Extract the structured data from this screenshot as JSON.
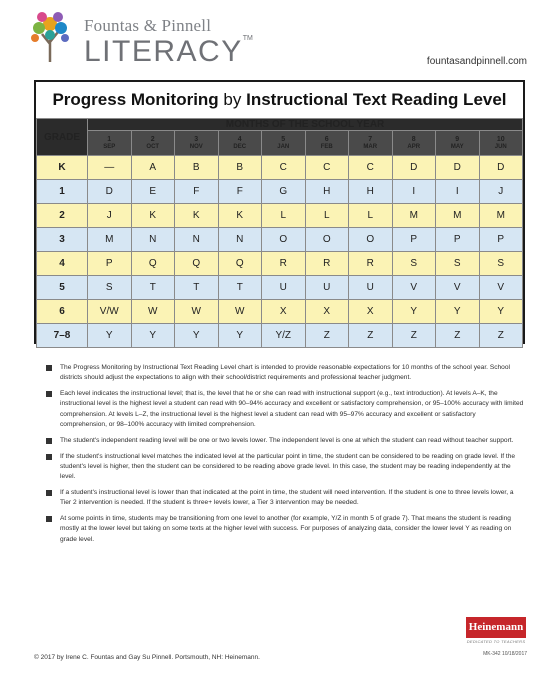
{
  "brand": {
    "name_top": "Fountas & Pinnell",
    "name_main": "LITERACY",
    "tm": "TM",
    "website": "fountasandpinnell.com"
  },
  "chart": {
    "title_bold_1": "Progress Monitoring",
    "title_by": "by",
    "title_bold_2": "Instructional Text Reading Level",
    "grade_header": "GRADE",
    "months_header": "MONTHS OF THE SCHOOL YEAR",
    "months": [
      {
        "num": "1",
        "name": "SEP"
      },
      {
        "num": "2",
        "name": "OCT"
      },
      {
        "num": "3",
        "name": "NOV"
      },
      {
        "num": "4",
        "name": "DEC"
      },
      {
        "num": "5",
        "name": "JAN"
      },
      {
        "num": "6",
        "name": "FEB"
      },
      {
        "num": "7",
        "name": "MAR"
      },
      {
        "num": "8",
        "name": "APR"
      },
      {
        "num": "9",
        "name": "MAY"
      },
      {
        "num": "10",
        "name": "JUN"
      }
    ],
    "rows": [
      {
        "grade": "K",
        "color": "yellow",
        "levels": [
          "—",
          "A",
          "B",
          "B",
          "C",
          "C",
          "C",
          "D",
          "D",
          "D"
        ]
      },
      {
        "grade": "1",
        "color": "blue",
        "levels": [
          "D",
          "E",
          "F",
          "F",
          "G",
          "H",
          "H",
          "I",
          "I",
          "J"
        ]
      },
      {
        "grade": "2",
        "color": "yellow",
        "levels": [
          "J",
          "K",
          "K",
          "K",
          "L",
          "L",
          "L",
          "M",
          "M",
          "M"
        ]
      },
      {
        "grade": "3",
        "color": "blue",
        "levels": [
          "M",
          "N",
          "N",
          "N",
          "O",
          "O",
          "O",
          "P",
          "P",
          "P"
        ]
      },
      {
        "grade": "4",
        "color": "yellow",
        "levels": [
          "P",
          "Q",
          "Q",
          "Q",
          "R",
          "R",
          "R",
          "S",
          "S",
          "S"
        ]
      },
      {
        "grade": "5",
        "color": "blue",
        "levels": [
          "S",
          "T",
          "T",
          "T",
          "U",
          "U",
          "U",
          "V",
          "V",
          "V"
        ]
      },
      {
        "grade": "6",
        "color": "yellow",
        "levels": [
          "V/W",
          "W",
          "W",
          "W",
          "X",
          "X",
          "X",
          "Y",
          "Y",
          "Y"
        ]
      },
      {
        "grade": "7–8",
        "color": "blue",
        "levels": [
          "Y",
          "Y",
          "Y",
          "Y",
          "Y/Z",
          "Z",
          "Z",
          "Z",
          "Z",
          "Z"
        ]
      }
    ]
  },
  "notes": [
    "The Progress Monitoring by Instructional Text Reading Level chart is intended to provide reasonable expectations for 10 months of the school year. School districts should adjust the expectations to align with their school/district requirements and professional teacher judgment.",
    "Each level indicates the instructional level; that is, the level that he or she can read with instructional support (e.g., text introduction). At levels A–K, the instructional level is the highest level a student can read with 90–94% accuracy and excellent or satisfactory comprehension, or 95–100% accuracy with limited comprehension. At levels L–Z, the instructional level is the highest level a student can read with 95–97% accuracy and excellent or satisfactory comprehension, or 98–100% accuracy with limited comprehension.",
    "The student's independent reading level will be one or two levels lower. The independent level is one at which the student can read without teacher support.",
    "If the student's instructional level matches the indicated level at the particular point in time, the student can be considered to be reading on grade level. If the student's level is higher, then the student can be considered to be reading above grade level. In this case, the student may be reading independently at the level.",
    "If a student's instructional level is lower than that indicated at the point in time, the student will need intervention. If the student is one to three levels lower, a Tier 2 intervention is needed. If the student is three+ levels lower, a Tier 3 intervention may be needed.",
    "At some points in time, students may be transitioning from one level to another (for example, Y/Z in month 5 of grade 7). That means the student is reading mostly at the lower level but taking on some texts at the higher level with success. For purposes of analyzing data, consider the lower level Y as reading on grade level."
  ],
  "footer": {
    "copyright": "© 2017 by Irene C. Fountas and Gay Su Pinnell. Portsmouth, NH: Heinemann.",
    "publisher": "Heinemann",
    "publisher_tagline": "DEDICATED TO TEACHERS",
    "doc_id": "MK-342   10/18/2017"
  },
  "colors": {
    "row_yellow": "#fbf3b5",
    "row_blue": "#d6e6f3",
    "header_dark": "#2b2b2b",
    "publisher_red": "#c6262a"
  }
}
